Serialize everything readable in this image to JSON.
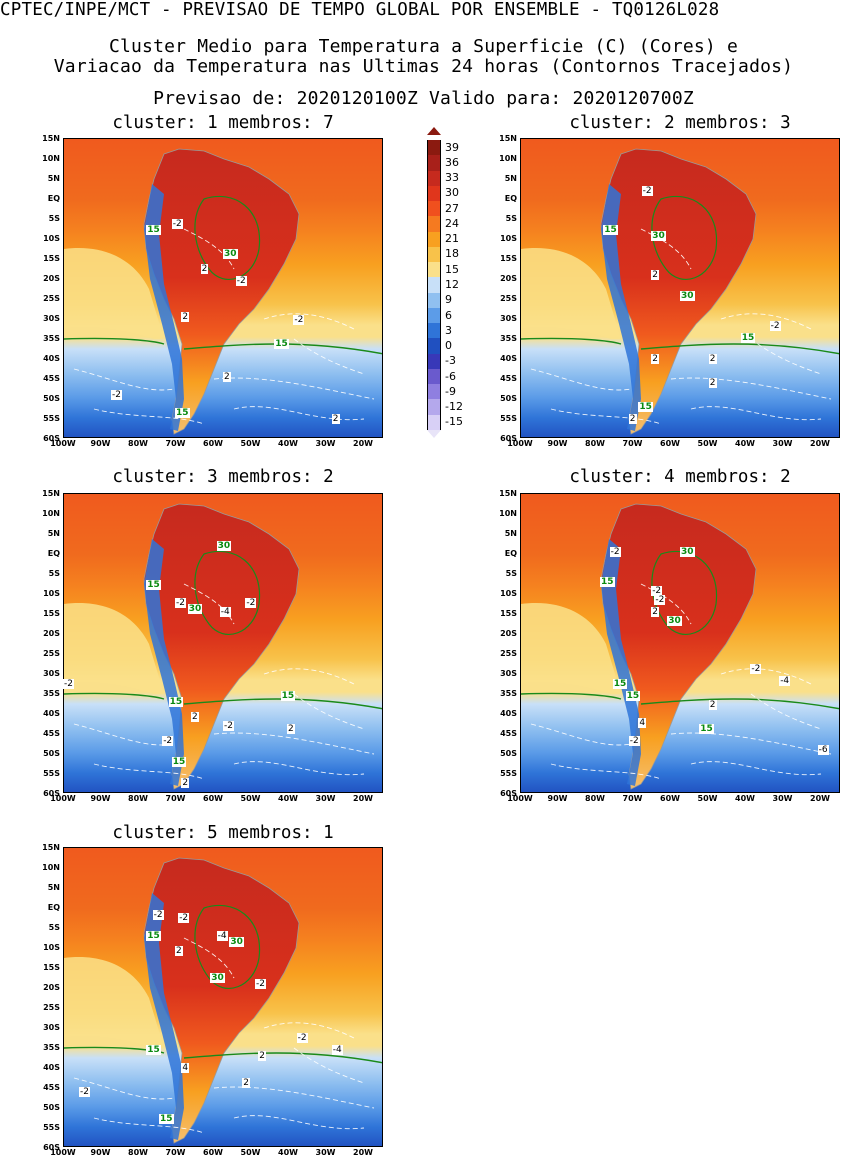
{
  "header": {
    "line1": "CPTEC/INPE/MCT - PREVISAO DE TEMPO GLOBAL POR ENSEMBLE - TQ0126L028",
    "line2": "Cluster Medio para Temperatura a Superficie (C) (Cores) e",
    "line3": "Variacao da Temperatura nas Ultimas 24 horas (Contornos Tracejados)",
    "line4": "Previsao de: 2020120100Z   Valido para: 2020120700Z"
  },
  "lat_labels": [
    "15N",
    "10N",
    "5N",
    "EQ",
    "5S",
    "10S",
    "15S",
    "20S",
    "25S",
    "30S",
    "35S",
    "40S",
    "45S",
    "50S",
    "55S",
    "60S"
  ],
  "lon_labels": [
    "100W",
    "90W",
    "80W",
    "70W",
    "60W",
    "50W",
    "40W",
    "30W",
    "20W"
  ],
  "colorbar": {
    "labels": [
      "39",
      "36",
      "33",
      "30",
      "27",
      "24",
      "21",
      "18",
      "15",
      "12",
      "9",
      "6",
      "3",
      "0",
      "-3",
      "-6",
      "-9",
      "-12",
      "-15"
    ],
    "colors": [
      "#8b1a10",
      "#a8201a",
      "#c62a1e",
      "#e0361c",
      "#f0501e",
      "#f57a20",
      "#f8a020",
      "#f8c24a",
      "#fae08a",
      "#c8e0f8",
      "#90c0f0",
      "#5c9ce8",
      "#2f74d8",
      "#2050c0",
      "#3838b8",
      "#6a5acd",
      "#8f7fe0",
      "#b4a8ec",
      "#d8d0f6"
    ]
  },
  "panels": [
    {
      "title": "cluster: 1   membros: 7",
      "labels": [
        {
          "text": "-2",
          "green": false
        },
        {
          "text": "15",
          "green": true
        },
        {
          "text": "30",
          "green": true
        },
        {
          "text": "2",
          "green": false
        },
        {
          "text": "-2",
          "green": false
        },
        {
          "text": "2",
          "green": false
        },
        {
          "text": "-2",
          "green": false
        },
        {
          "text": "15",
          "green": true
        },
        {
          "text": "-2",
          "green": false
        },
        {
          "text": "2",
          "green": false
        },
        {
          "text": "15",
          "green": true
        },
        {
          "text": "2",
          "green": false
        }
      ]
    },
    {
      "title": "cluster: 2   membros: 3",
      "labels": [
        {
          "text": "-2",
          "green": false
        },
        {
          "text": "15",
          "green": true
        },
        {
          "text": "30",
          "green": true
        },
        {
          "text": "2",
          "green": false
        },
        {
          "text": "30",
          "green": true
        },
        {
          "text": "15",
          "green": true
        },
        {
          "text": "-2",
          "green": false
        },
        {
          "text": "2",
          "green": false
        },
        {
          "text": "2",
          "green": false
        },
        {
          "text": "2",
          "green": false
        },
        {
          "text": "15",
          "green": true
        },
        {
          "text": "2",
          "green": false
        }
      ]
    },
    {
      "title": "cluster: 3   membros: 2",
      "labels": [
        {
          "text": "30",
          "green": true
        },
        {
          "text": "15",
          "green": true
        },
        {
          "text": "-2",
          "green": false
        },
        {
          "text": "30",
          "green": true
        },
        {
          "text": "-4",
          "green": false
        },
        {
          "text": "-2",
          "green": false
        },
        {
          "text": "-2",
          "green": false
        },
        {
          "text": "15",
          "green": true
        },
        {
          "text": "15",
          "green": true
        },
        {
          "text": "-2",
          "green": false
        },
        {
          "text": "2",
          "green": false
        },
        {
          "text": "-2",
          "green": false
        },
        {
          "text": "15",
          "green": true
        },
        {
          "text": "2",
          "green": false
        },
        {
          "text": "2",
          "green": false
        }
      ]
    },
    {
      "title": "cluster: 4   membros: 2",
      "labels": [
        {
          "text": "-2",
          "green": false
        },
        {
          "text": "30",
          "green": true
        },
        {
          "text": "15",
          "green": true
        },
        {
          "text": "-2",
          "green": false
        },
        {
          "text": "2",
          "green": false
        },
        {
          "text": "30",
          "green": true
        },
        {
          "text": "-2",
          "green": false
        },
        {
          "text": "15",
          "green": true
        },
        {
          "text": "15",
          "green": true
        },
        {
          "text": "-2",
          "green": false
        },
        {
          "text": "-4",
          "green": false
        },
        {
          "text": "2",
          "green": false
        },
        {
          "text": "4",
          "green": false
        },
        {
          "text": "15",
          "green": true
        },
        {
          "text": "-2",
          "green": false
        },
        {
          "text": "-6",
          "green": false
        }
      ]
    },
    {
      "title": "cluster: 5   membros: 1",
      "labels": [
        {
          "text": "-2",
          "green": false
        },
        {
          "text": "-2",
          "green": false
        },
        {
          "text": "15",
          "green": true
        },
        {
          "text": "-4",
          "green": false
        },
        {
          "text": "30",
          "green": true
        },
        {
          "text": "2",
          "green": false
        },
        {
          "text": "30",
          "green": true
        },
        {
          "text": "-2",
          "green": false
        },
        {
          "text": "-2",
          "green": false
        },
        {
          "text": "15",
          "green": true
        },
        {
          "text": "4",
          "green": false
        },
        {
          "text": "2",
          "green": false
        },
        {
          "text": "-4",
          "green": false
        },
        {
          "text": "-2",
          "green": false
        },
        {
          "text": "2",
          "green": false
        },
        {
          "text": "15",
          "green": true
        }
      ]
    }
  ]
}
